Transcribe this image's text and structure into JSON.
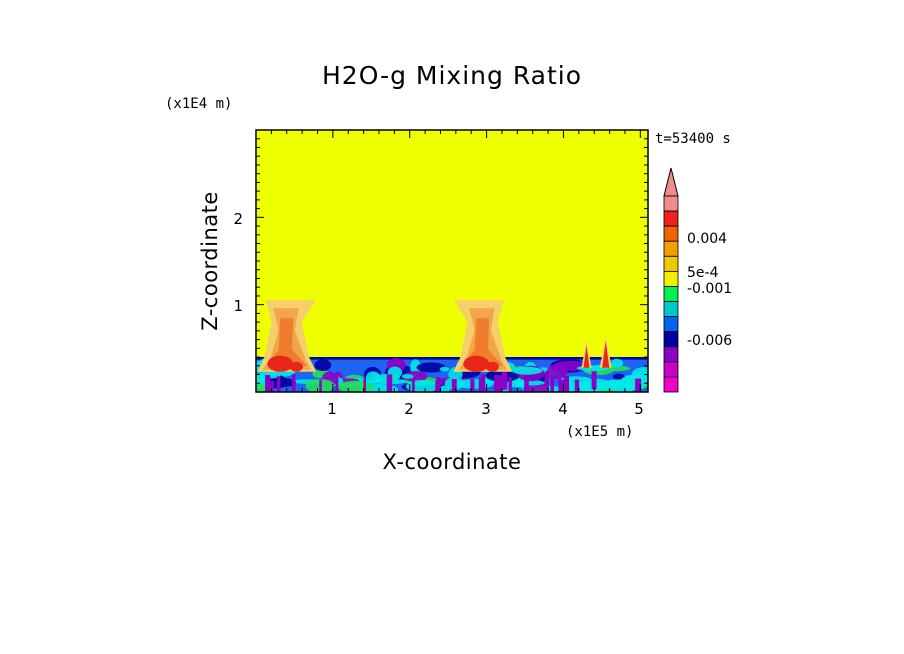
{
  "chart_data": {
    "type": "heatmap",
    "title": "H2O-g Mixing Ratio",
    "xlabel": "X-coordinate",
    "ylabel": "Z-coordinate",
    "x_scale_label": "(x1E5 m)",
    "y_scale_label": "(x1E4 m)",
    "time_label": "t=53400 s",
    "xlim": [
      0,
      5.1
    ],
    "ylim": [
      0,
      3.0
    ],
    "x_ticks": [
      "1",
      "2",
      "3",
      "4",
      "5"
    ],
    "y_ticks": [
      "1",
      "2"
    ],
    "background_value": "0 (between -5e-4 and 5e-4)",
    "features": [
      {
        "name": "low-level layer",
        "x_range": [
          0,
          5.1
        ],
        "z_top": 0.4,
        "level": "negative (-0.001 to -0.006)"
      },
      {
        "name": "plume A",
        "x_center": 0.4,
        "x_range": [
          0.1,
          0.8
        ],
        "z_range": [
          0.3,
          1.05
        ],
        "level": "positive (5e-4 to 0.004)"
      },
      {
        "name": "plume B",
        "x_center": 2.95,
        "x_range": [
          2.55,
          3.25
        ],
        "z_range": [
          0.3,
          1.05
        ],
        "level": "positive (5e-4 to 0.004)"
      },
      {
        "name": "spike C",
        "x_center": 4.3,
        "z_range": [
          0.3,
          0.6
        ],
        "level": "positive"
      },
      {
        "name": "spike D",
        "x_center": 4.55,
        "z_range": [
          0.3,
          0.65
        ],
        "level": "positive"
      }
    ],
    "colorbar": {
      "labels": [
        "0.004",
        "5e-4",
        "-0.001",
        "-0.006"
      ],
      "colors_top_to_bottom": [
        "#f08c8c",
        "#f02020",
        "#f06400",
        "#f0a000",
        "#f0c800",
        "#f0f000",
        "#00f050",
        "#00c8c8",
        "#0064f0",
        "#0000a0",
        "#8c00c8",
        "#c800c8",
        "#f000c8"
      ],
      "extend": "max"
    }
  },
  "colors": {
    "zero": "#eeff00",
    "pos_low": "#f5cf6a",
    "pos_mid": "#f2a64a",
    "pos_high": "#f07c2e",
    "pos_max": "#e8261a",
    "neg_low": "#00e8e8",
    "neg_mid": "#1e64f0",
    "neg_high": "#0000a0",
    "neg_max": "#8c00c8",
    "green": "#22e058"
  }
}
